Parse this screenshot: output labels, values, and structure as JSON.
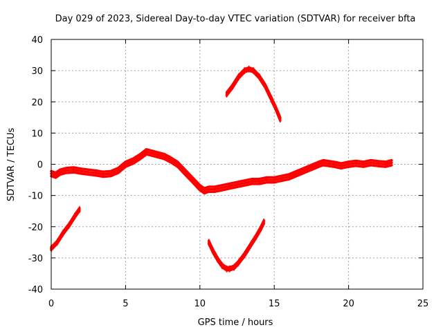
{
  "chart_data": {
    "type": "line",
    "title": "Day 029 of 2023, Sidereal Day-to-day VTEC variation (SDTVAR) for receiver bfta",
    "xlabel": "GPS time / hours",
    "ylabel": "SDTVAR / TECUs",
    "xlim": [
      0,
      25
    ],
    "ylim": [
      -40,
      40
    ],
    "xticks": [
      0,
      5,
      10,
      15,
      20,
      25
    ],
    "yticks": [
      -40,
      -30,
      -20,
      -10,
      0,
      10,
      20,
      30,
      40
    ],
    "grid": true,
    "color": "#ff0000",
    "series": [
      {
        "name": "main-track",
        "x": [
          0.0,
          0.3,
          0.6,
          1.0,
          1.5,
          2.0,
          2.5,
          3.0,
          3.5,
          4.0,
          4.5,
          5.0,
          5.5,
          6.0,
          6.4,
          6.8,
          7.2,
          7.6,
          8.0,
          8.5,
          9.0,
          9.5,
          10.0,
          10.3,
          10.6,
          11.0,
          11.5,
          12.0,
          12.5,
          13.0,
          13.5,
          14.0,
          14.5,
          15.0,
          15.5,
          16.0,
          16.5,
          17.0,
          17.5,
          18.0,
          18.3,
          18.7,
          19.0,
          19.5,
          20.0,
          20.5,
          21.0,
          21.5,
          22.0,
          22.5,
          22.9
        ],
        "y": [
          -3,
          -3.5,
          -2.5,
          -2,
          -1.8,
          -2.2,
          -2.5,
          -2.8,
          -3.2,
          -3,
          -2,
          0,
          1,
          2.5,
          4,
          3.5,
          3,
          2.5,
          1.5,
          0,
          -2.5,
          -5,
          -7.5,
          -8.5,
          -8,
          -8,
          -7.5,
          -7,
          -6.5,
          -6,
          -5.5,
          -5.5,
          -5,
          -5,
          -4.5,
          -4,
          -3,
          -2,
          -1,
          0,
          0.5,
          0.2,
          0,
          -0.5,
          0,
          0.3,
          0,
          0.5,
          0.2,
          0,
          0.5
        ],
        "band": 1.6
      },
      {
        "name": "early-negative-arc",
        "x": [
          0.0,
          0.4,
          0.8,
          1.2,
          1.6,
          1.9
        ],
        "y": [
          -27,
          -25,
          -22,
          -19.5,
          -16.5,
          -14.5
        ],
        "band": 0.9
      },
      {
        "name": "upper-arc",
        "x": [
          11.8,
          12.2,
          12.6,
          13.0,
          13.3,
          13.6,
          14.0,
          14.4,
          14.8,
          15.1,
          15.4
        ],
        "y": [
          22.5,
          25,
          28,
          30,
          30.5,
          30,
          28,
          25,
          21,
          18,
          14.5
        ],
        "band": 1.0
      },
      {
        "name": "lower-arc",
        "x": [
          10.6,
          10.9,
          11.2,
          11.5,
          11.8,
          12.0,
          12.3,
          12.6,
          13.0,
          13.4,
          13.8,
          14.1,
          14.3
        ],
        "y": [
          -25,
          -28,
          -30.5,
          -32.5,
          -33.5,
          -33.5,
          -33,
          -31.5,
          -29,
          -26,
          -23,
          -20.5,
          -18.5
        ],
        "band": 1.0
      }
    ]
  }
}
